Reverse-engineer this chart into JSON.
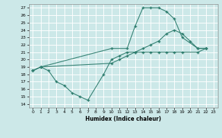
{
  "xlabel": "Humidex (Indice chaleur)",
  "line_color": "#2e7d6e",
  "bg_color": "#cce8e8",
  "grid_color": "#ffffff",
  "xlim": [
    -0.5,
    23.5
  ],
  "ylim": [
    13.5,
    27.5
  ],
  "yticks": [
    14,
    15,
    16,
    17,
    18,
    19,
    20,
    21,
    22,
    23,
    24,
    25,
    26,
    27
  ],
  "xticks": [
    0,
    1,
    2,
    3,
    4,
    5,
    6,
    7,
    8,
    9,
    10,
    11,
    12,
    13,
    14,
    15,
    16,
    17,
    18,
    19,
    20,
    21,
    22,
    23
  ],
  "line1_x": [
    0,
    1,
    10,
    12,
    13,
    14,
    15,
    16,
    17,
    18,
    19,
    21,
    22
  ],
  "line1_y": [
    18.5,
    19.0,
    21.5,
    21.5,
    24.5,
    27.0,
    27.0,
    27.0,
    26.5,
    25.5,
    23.0,
    21.5,
    21.5
  ],
  "line2_x": [
    0,
    1,
    10,
    11,
    12,
    13,
    14,
    15,
    16,
    17,
    18,
    19,
    20,
    21,
    22
  ],
  "line2_y": [
    18.5,
    19.0,
    19.5,
    20.0,
    20.5,
    21.0,
    21.5,
    22.0,
    22.5,
    23.5,
    24.0,
    23.5,
    22.5,
    21.5,
    21.5
  ],
  "line3_x": [
    0,
    1,
    2,
    3,
    4,
    5,
    6,
    7,
    9,
    10,
    11,
    12,
    13,
    14,
    15,
    16,
    17,
    18,
    19,
    21,
    22
  ],
  "line3_y": [
    18.5,
    19.0,
    18.5,
    17.0,
    16.5,
    15.5,
    15.0,
    14.5,
    18.0,
    20.0,
    20.5,
    21.0,
    21.0,
    21.0,
    21.0,
    21.0,
    21.0,
    21.0,
    21.0,
    21.0,
    21.5
  ]
}
